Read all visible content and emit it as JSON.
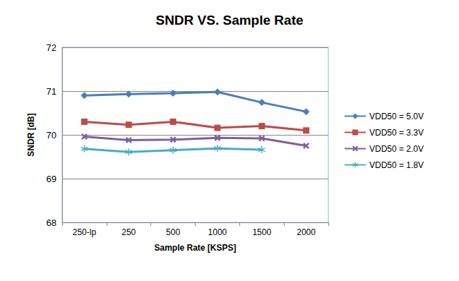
{
  "chart_data": {
    "type": "line",
    "title": "SNDR VS. Sample Rate",
    "x_label": "Sample Rate [KSPS]",
    "y_label": "SNDR [dB]",
    "categories": [
      "250-lp",
      "250",
      "500",
      "1000",
      "1500",
      "2000"
    ],
    "series": [
      {
        "name": "VDD50 = 5.0V",
        "color": "#4a7ebb",
        "marker": "diamond",
        "values": [
          70.9,
          70.93,
          70.95,
          70.98,
          70.74,
          70.53
        ]
      },
      {
        "name": "VDD50 = 3.3V",
        "color": "#be4b48",
        "marker": "square",
        "values": [
          70.3,
          70.23,
          70.3,
          70.16,
          70.2,
          70.1
        ]
      },
      {
        "name": "VDD50 = 2.0V",
        "color": "#7d60a0",
        "marker": "x",
        "values": [
          69.96,
          69.88,
          69.89,
          69.93,
          69.92,
          69.75
        ]
      },
      {
        "name": "VDD50 = 1.8V",
        "color": "#4bacc6",
        "marker": "star",
        "values": [
          69.68,
          69.61,
          69.65,
          69.69,
          69.66,
          null
        ]
      }
    ],
    "ylim": [
      68,
      72
    ],
    "yticks": [
      68,
      69,
      70,
      71,
      72
    ],
    "grid": true,
    "legend": "right"
  }
}
